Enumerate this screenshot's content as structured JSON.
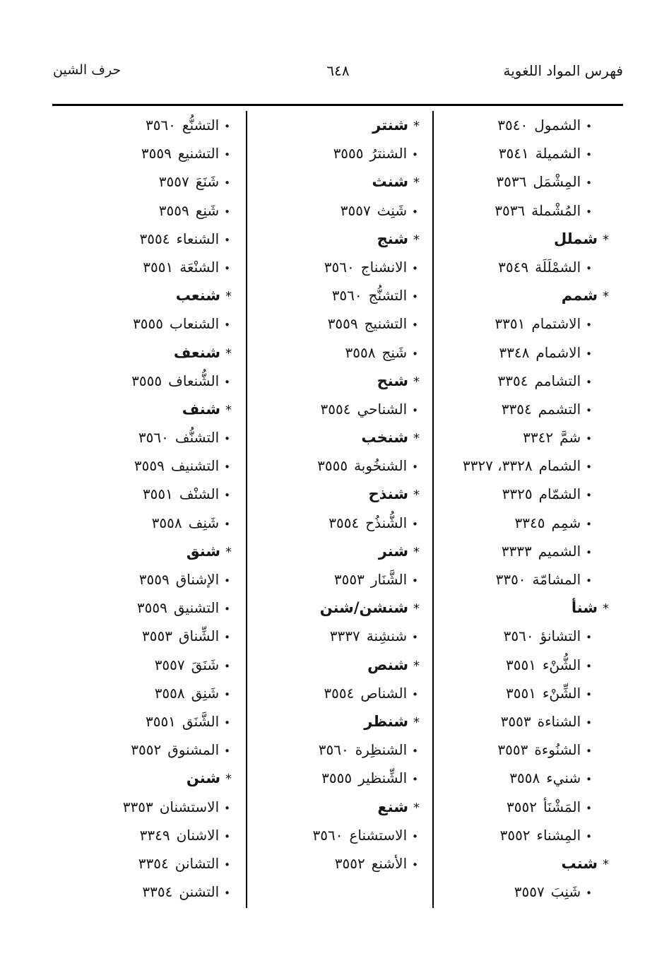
{
  "colors": {
    "paper": "#ffffff",
    "ink": "#161616",
    "rule": "#000000"
  },
  "header": {
    "right_title": "فهرس المواد اللغوية",
    "page_number": "٦٤٨",
    "left_title": "حرف الشين"
  },
  "markers": {
    "head": "*",
    "entry": "•"
  },
  "columns": [
    {
      "side": "right",
      "items": [
        {
          "type": "entry",
          "m": "•",
          "w": "الشمول",
          "p": "٣٥٤٠"
        },
        {
          "type": "entry",
          "m": "•",
          "w": "الشميلة",
          "p": "٣٥٤١"
        },
        {
          "type": "entry",
          "m": "•",
          "w": "المِشْمَل",
          "p": "٣٥٣٦"
        },
        {
          "type": "entry",
          "m": "•",
          "w": "المُشْملة",
          "p": "٣٥٣٦"
        },
        {
          "type": "head",
          "m": "*",
          "w": "شملل"
        },
        {
          "type": "entry",
          "m": "•",
          "w": "الشمْلَلَة",
          "p": "٣٥٤٩"
        },
        {
          "type": "head",
          "m": "*",
          "w": "شمم"
        },
        {
          "type": "entry",
          "m": "•",
          "w": "الاشتمام",
          "p": "٣٣٥١"
        },
        {
          "type": "entry",
          "m": "•",
          "w": "الاشمام",
          "p": "٣٣٤٨"
        },
        {
          "type": "entry",
          "m": "•",
          "w": "التشامم",
          "p": "٣٣٥٤"
        },
        {
          "type": "entry",
          "m": "•",
          "w": "التشمم",
          "p": "٣٣٥٤"
        },
        {
          "type": "entry",
          "m": "•",
          "w": "شمَّ",
          "p": "٣٣٤٢"
        },
        {
          "type": "entry",
          "m": "•",
          "w": "الشمام",
          "p": "٣٣٢٨، ٣٣٢٧"
        },
        {
          "type": "entry",
          "m": "•",
          "w": "الشمّام",
          "p": "٣٣٢٥"
        },
        {
          "type": "entry",
          "m": "•",
          "w": "شمِم",
          "p": "٣٣٤٥"
        },
        {
          "type": "entry",
          "m": "•",
          "w": "الشميم",
          "p": "٣٣٣٣"
        },
        {
          "type": "entry",
          "m": "•",
          "w": "المشامّة",
          "p": "٣٣٥٠"
        },
        {
          "type": "head",
          "m": "*",
          "w": "شنأ"
        },
        {
          "type": "entry",
          "m": "•",
          "w": "التشانؤ",
          "p": "٣٥٦٠"
        },
        {
          "type": "entry",
          "m": "•",
          "w": "الشُّنْء",
          "p": "٣٥٥١"
        },
        {
          "type": "entry",
          "m": "•",
          "w": "الشِّنْء",
          "p": "٣٥٥١"
        },
        {
          "type": "entry",
          "m": "•",
          "w": "الشناءة",
          "p": "٣٥٥٣"
        },
        {
          "type": "entry",
          "m": "•",
          "w": "الشنُوءة",
          "p": "٣٥٥٣"
        },
        {
          "type": "entry",
          "m": "•",
          "w": "شنيء",
          "p": "٣٥٥٨"
        },
        {
          "type": "entry",
          "m": "•",
          "w": "المَشْنَأ",
          "p": "٣٥٥٢"
        },
        {
          "type": "entry",
          "m": "•",
          "w": "المِشناء",
          "p": "٣٥٥٢"
        },
        {
          "type": "head",
          "m": "*",
          "w": "شنب"
        },
        {
          "type": "entry",
          "m": "•",
          "w": "شَنِبَ",
          "p": "٣٥٥٧"
        }
      ]
    },
    {
      "side": "middle",
      "items": [
        {
          "type": "head",
          "m": "*",
          "w": "شنتر"
        },
        {
          "type": "entry",
          "m": "•",
          "w": "الشنترُ",
          "p": "٣٥٥٥"
        },
        {
          "type": "head",
          "m": "*",
          "w": "شنث"
        },
        {
          "type": "entry",
          "m": "•",
          "w": "شَنِث",
          "p": "٣٥٥٧"
        },
        {
          "type": "head",
          "m": "*",
          "w": "شنج"
        },
        {
          "type": "entry",
          "m": "•",
          "w": "الانشناج",
          "p": "٣٥٦٠"
        },
        {
          "type": "entry",
          "m": "•",
          "w": "التشنُّج",
          "p": "٣٥٦٠"
        },
        {
          "type": "entry",
          "m": "•",
          "w": "التشنيج",
          "p": "٣٥٥٩"
        },
        {
          "type": "entry",
          "m": "•",
          "w": "شَنِج",
          "p": "٣٥٥٨"
        },
        {
          "type": "head",
          "m": "*",
          "w": "شنح"
        },
        {
          "type": "entry",
          "m": "•",
          "w": "الشناحي",
          "p": "٣٥٥٤"
        },
        {
          "type": "head",
          "m": "*",
          "w": "شنخب"
        },
        {
          "type": "entry",
          "m": "•",
          "w": "الشنخُوبة",
          "p": "٣٥٥٥"
        },
        {
          "type": "head",
          "m": "*",
          "w": "شنذح"
        },
        {
          "type": "entry",
          "m": "•",
          "w": "الشُّنذُح",
          "p": "٣٥٥٤"
        },
        {
          "type": "head",
          "m": "*",
          "w": "شنر"
        },
        {
          "type": "entry",
          "m": "•",
          "w": "الشَّنَار",
          "p": "٣٥٥٣"
        },
        {
          "type": "head",
          "m": "*",
          "w": "شنشن/شنن"
        },
        {
          "type": "entry",
          "m": "•",
          "w": "شنشِنة",
          "p": "٣٣٣٧"
        },
        {
          "type": "head",
          "m": "*",
          "w": "شنص"
        },
        {
          "type": "entry",
          "m": "•",
          "w": "الشناص",
          "p": "٣٥٥٤"
        },
        {
          "type": "head",
          "m": "*",
          "w": "شنظر"
        },
        {
          "type": "entry",
          "m": "•",
          "w": "الشنظِرة",
          "p": "٣٥٦٠"
        },
        {
          "type": "entry",
          "m": "•",
          "w": "الشِّنظير",
          "p": "٣٥٥٥"
        },
        {
          "type": "head",
          "m": "*",
          "w": "شنع"
        },
        {
          "type": "entry",
          "m": "•",
          "w": "الاستشناع",
          "p": "٣٥٦٠"
        },
        {
          "type": "entry",
          "m": "•",
          "w": "الأشنع",
          "p": "٣٥٥٢"
        }
      ]
    },
    {
      "side": "left",
      "items": [
        {
          "type": "entry",
          "m": "•",
          "w": "التشنُّع",
          "p": "٣٥٦٠"
        },
        {
          "type": "entry",
          "m": "•",
          "w": "التشنيع",
          "p": "٣٥٥٩"
        },
        {
          "type": "entry",
          "m": "•",
          "w": "شَنَعَ",
          "p": "٣٥٥٧"
        },
        {
          "type": "entry",
          "m": "•",
          "w": "شَنِع",
          "p": "٣٥٥٩"
        },
        {
          "type": "entry",
          "m": "•",
          "w": "الشنعاء",
          "p": "٣٥٥٤"
        },
        {
          "type": "entry",
          "m": "•",
          "w": "الشنْعَة",
          "p": "٣٥٥١"
        },
        {
          "type": "head",
          "m": "*",
          "w": "شنعب"
        },
        {
          "type": "entry",
          "m": "•",
          "w": "الشنعاب",
          "p": "٣٥٥٥"
        },
        {
          "type": "head",
          "m": "*",
          "w": "شنعف"
        },
        {
          "type": "entry",
          "m": "•",
          "w": "الشُّنعاف",
          "p": "٣٥٥٥"
        },
        {
          "type": "head",
          "m": "*",
          "w": "شنف"
        },
        {
          "type": "entry",
          "m": "•",
          "w": "التشنُّف",
          "p": "٣٥٦٠"
        },
        {
          "type": "entry",
          "m": "•",
          "w": "التشنيف",
          "p": "٣٥٥٩"
        },
        {
          "type": "entry",
          "m": "•",
          "w": "الشنْف",
          "p": "٣٥٥١"
        },
        {
          "type": "entry",
          "m": "•",
          "w": "شَنِف",
          "p": "٣٥٥٨"
        },
        {
          "type": "head",
          "m": "*",
          "w": "شنق"
        },
        {
          "type": "entry",
          "m": "•",
          "w": "الإشناق",
          "p": "٣٥٥٩"
        },
        {
          "type": "entry",
          "m": "•",
          "w": "التشنيق",
          "p": "٣٥٥٩"
        },
        {
          "type": "entry",
          "m": "•",
          "w": "الشِّناق",
          "p": "٣٥٥٣"
        },
        {
          "type": "entry",
          "m": "•",
          "w": "شَنَقَ",
          "p": "٣٥٥٧"
        },
        {
          "type": "entry",
          "m": "•",
          "w": "شَنِق",
          "p": "٣٥٥٨"
        },
        {
          "type": "entry",
          "m": "•",
          "w": "الشَّنَق",
          "p": "٣٥٥١"
        },
        {
          "type": "entry",
          "m": "•",
          "w": "المشنوق",
          "p": "٣٥٥٢"
        },
        {
          "type": "head",
          "m": "*",
          "w": "شنن"
        },
        {
          "type": "entry",
          "m": "•",
          "w": "الاستشنان",
          "p": "٣٣٥٣"
        },
        {
          "type": "entry",
          "m": "•",
          "w": "الاشنان",
          "p": "٣٣٤٩"
        },
        {
          "type": "entry",
          "m": "•",
          "w": "التشانن",
          "p": "٣٣٥٤"
        },
        {
          "type": "entry",
          "m": "•",
          "w": "التشنن",
          "p": "٣٣٥٤"
        }
      ]
    }
  ]
}
